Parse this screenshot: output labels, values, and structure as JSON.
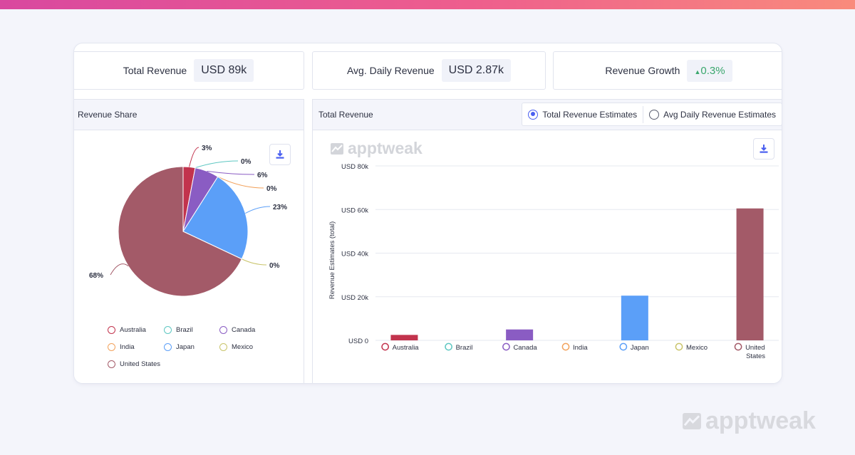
{
  "kpis": {
    "total_revenue": {
      "label": "Total Revenue",
      "value": "USD 89k"
    },
    "avg_daily_revenue": {
      "label": "Avg. Daily Revenue",
      "value": "USD 2.87k"
    },
    "revenue_growth": {
      "label": "Revenue Growth",
      "value": "0.3%"
    }
  },
  "revenue_share": {
    "title": "Revenue Share"
  },
  "total_revenue_card": {
    "title": "Total Revenue",
    "toggle": {
      "option_total": "Total Revenue Estimates",
      "option_avg": "Avg Daily Revenue Estimates",
      "selected": "Total Revenue Estimates"
    }
  },
  "watermark": {
    "brand": "apptweak"
  },
  "icons": {
    "download": "download-icon",
    "growth_arrow": "triangle-up-icon",
    "logo": "apptweak-logo-icon"
  },
  "colors": {
    "Australia": "#c2334d",
    "Brazil": "#5ec7c2",
    "Canada": "#8a5cc3",
    "India": "#f2a25c",
    "Japan": "#5b9ff8",
    "Mexico": "#c9c46a",
    "United States": "#a35a68",
    "accent": "#4a5ff0",
    "growth": "#3aa76d"
  },
  "chart_data": [
    {
      "type": "pie",
      "title": "Revenue Share",
      "categories": [
        "Australia",
        "Brazil",
        "Canada",
        "India",
        "Japan",
        "Mexico",
        "United States"
      ],
      "values": [
        3,
        0,
        6,
        0,
        23,
        0,
        68
      ],
      "labels": [
        "3%",
        "0%",
        "6%",
        "0%",
        "23%",
        "0%",
        "68%"
      ],
      "legend": "bottom"
    },
    {
      "type": "bar",
      "title": "Total Revenue",
      "categories": [
        "Australia",
        "Brazil",
        "Canada",
        "India",
        "Japan",
        "Mexico",
        "United States"
      ],
      "values": [
        2500,
        0,
        5000,
        0,
        20500,
        0,
        60500
      ],
      "ylabel": "Revenue Estimates (total)",
      "yticks": [
        "USD 0",
        "USD 20k",
        "USD 40k",
        "USD 60k",
        "USD 80k"
      ],
      "ylim": [
        0,
        80000
      ],
      "grid": true
    }
  ]
}
